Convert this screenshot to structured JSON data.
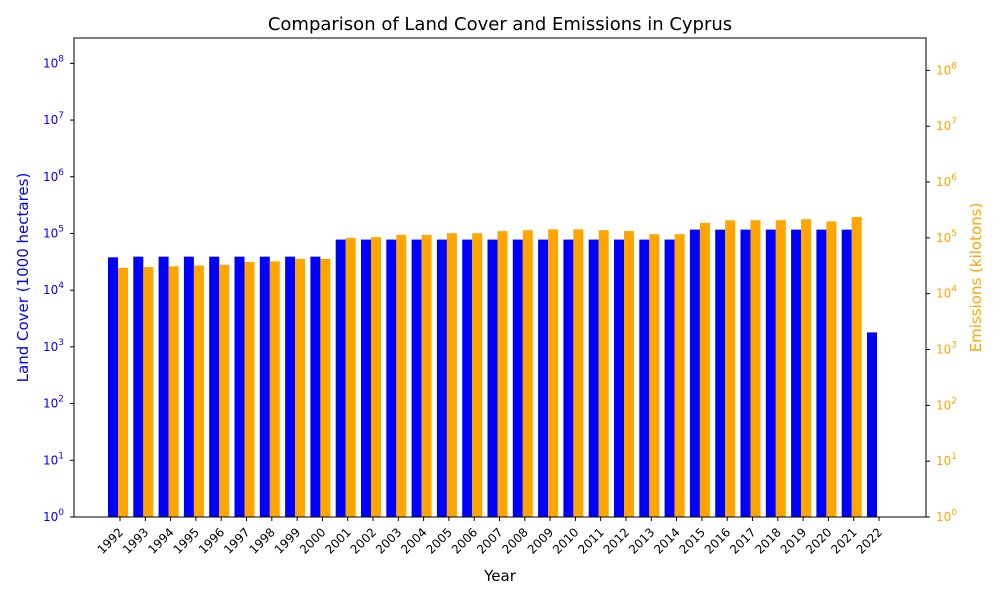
{
  "chart_data": {
    "type": "bar",
    "title": "Comparison of Land Cover and Emissions in Cyprus",
    "xlabel": "Year",
    "ylabel_left": "Land Cover (1000 hectares)",
    "ylabel_right": "Emissions (kilotons)",
    "y_scale": "log",
    "ylim_left": [
      1,
      280000000
    ],
    "ylim_right": [
      1,
      380000000
    ],
    "left_ticks": [
      {
        "value": 1,
        "base": "10",
        "exp": "0"
      },
      {
        "value": 10,
        "base": "10",
        "exp": "1"
      },
      {
        "value": 100,
        "base": "10",
        "exp": "2"
      },
      {
        "value": 1000,
        "base": "10",
        "exp": "3"
      },
      {
        "value": 10000,
        "base": "10",
        "exp": "4"
      },
      {
        "value": 100000,
        "base": "10",
        "exp": "5"
      },
      {
        "value": 1000000,
        "base": "10",
        "exp": "6"
      },
      {
        "value": 10000000,
        "base": "10",
        "exp": "7"
      },
      {
        "value": 100000000,
        "base": "10",
        "exp": "8"
      }
    ],
    "right_ticks": [
      {
        "value": 1,
        "base": "10",
        "exp": "0"
      },
      {
        "value": 10,
        "base": "10",
        "exp": "1"
      },
      {
        "value": 100,
        "base": "10",
        "exp": "2"
      },
      {
        "value": 1000,
        "base": "10",
        "exp": "3"
      },
      {
        "value": 10000,
        "base": "10",
        "exp": "4"
      },
      {
        "value": 100000,
        "base": "10",
        "exp": "5"
      },
      {
        "value": 1000000,
        "base": "10",
        "exp": "6"
      },
      {
        "value": 10000000,
        "base": "10",
        "exp": "7"
      },
      {
        "value": 100000000,
        "base": "10",
        "exp": "8"
      }
    ],
    "categories": [
      "1992",
      "1993",
      "1994",
      "1995",
      "1996",
      "1997",
      "1998",
      "1999",
      "2000",
      "2001",
      "2002",
      "2003",
      "2004",
      "2005",
      "2006",
      "2007",
      "2008",
      "2009",
      "2010",
      "2011",
      "2012",
      "2013",
      "2014",
      "2015",
      "2016",
      "2017",
      "2018",
      "2019",
      "2020",
      "2021",
      "2022"
    ],
    "series": [
      {
        "name": "Land Cover",
        "axis": "left",
        "color": "#0000ff",
        "values": [
          38000,
          39000,
          39000,
          39000,
          39000,
          39000,
          39000,
          39000,
          39000,
          78000,
          78000,
          78000,
          78000,
          78000,
          78000,
          78000,
          78000,
          78000,
          78000,
          78000,
          78000,
          78000,
          78000,
          117000,
          117000,
          117000,
          117000,
          117000,
          117000,
          117000,
          1800
        ]
      },
      {
        "name": "Emissions",
        "axis": "right",
        "color": "#ffa500",
        "values": [
          29000,
          30000,
          31000,
          32000,
          33000,
          37000,
          38000,
          42000,
          42000,
          100000,
          103000,
          113000,
          113000,
          121000,
          121000,
          132000,
          137000,
          142000,
          142000,
          137000,
          132000,
          116000,
          116000,
          185000,
          206000,
          207000,
          207000,
          216000,
          197000,
          236000,
          null
        ]
      }
    ],
    "colors": {
      "left_axis": "#0000ff",
      "right_axis": "#ffa500",
      "text": "#000000"
    }
  }
}
